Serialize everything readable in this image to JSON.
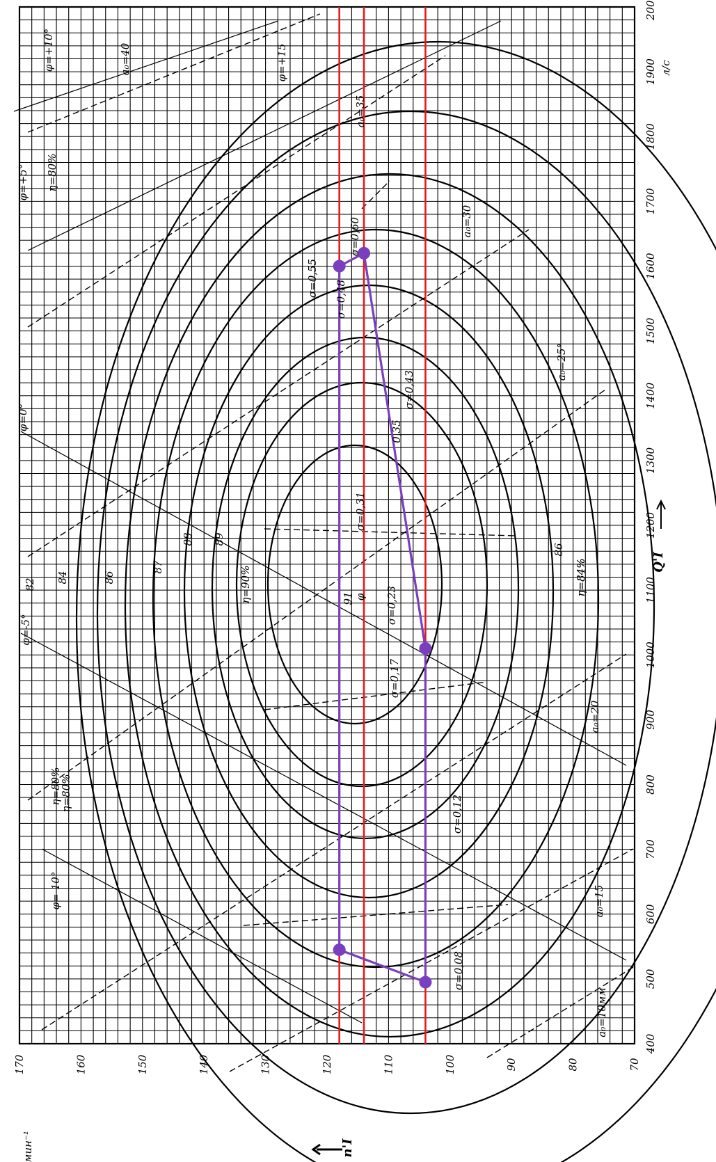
{
  "chart_data": {
    "type": "line",
    "title": "",
    "xlabel": "Q'I",
    "ylabel": "n'I",
    "x_unit": "л/с",
    "y_unit": "мин⁻¹",
    "xlim": [
      400,
      2000
    ],
    "ylim": [
      70,
      170
    ],
    "x_ticks": [
      "400",
      "500",
      "600",
      "700",
      "800",
      "900",
      "1000",
      "1100",
      "1200",
      "1300",
      "1400",
      "1500",
      "1600",
      "1700",
      "1800",
      "1900",
      "2000"
    ],
    "y_ticks": [
      "70",
      "80",
      "90",
      "100",
      "110",
      "120",
      "130",
      "140",
      "150",
      "160",
      "170"
    ],
    "grid": true,
    "orientation": "rotated 90° counter-clockwise (x axis vertical, right edge; y axis horizontal, bottom edge)",
    "reference_lines": [
      {
        "axis": "y",
        "value": 118,
        "color": "#e8191b"
      },
      {
        "axis": "y",
        "value": 114,
        "color": "#e8191b"
      },
      {
        "axis": "y",
        "value": 104,
        "color": "#e8191b"
      }
    ],
    "operating_zone": {
      "color": "#7a3fbf",
      "points": [
        {
          "x": 1600,
          "y": 118
        },
        {
          "x": 1620,
          "y": 114
        },
        {
          "x": 1010,
          "y": 104
        },
        {
          "x": 495,
          "y": 104
        },
        {
          "x": 545,
          "y": 118
        }
      ]
    },
    "efficiency_contours": [
      {
        "label": "η=90%",
        "value": 90
      },
      {
        "label": "89",
        "value": 89
      },
      {
        "label": "88",
        "value": 88
      },
      {
        "label": "87",
        "value": 87
      },
      {
        "label": "86",
        "value": 86
      },
      {
        "label": "84",
        "value": 84
      },
      {
        "label": "82",
        "value": 82
      },
      {
        "label": "η=80%",
        "value": 80
      },
      {
        "label": "η=84%",
        "value": 84
      },
      {
        "label": "91",
        "value": 91
      }
    ],
    "annotations": [
      {
        "text": "φ=+10°"
      },
      {
        "text": "a₀=40"
      },
      {
        "text": "φ=+15"
      },
      {
        "text": "a₀=35"
      },
      {
        "text": "η=80%"
      },
      {
        "text": "φ=+5°"
      },
      {
        "text": "a₀=30"
      },
      {
        "text": "σ=0,55"
      },
      {
        "text": "σ=0,60"
      },
      {
        "text": "σ=0,48"
      },
      {
        "text": "a₀=25°"
      },
      {
        "text": "σ=0,43"
      },
      {
        "text": "φ=0°"
      },
      {
        "text": "0,35"
      },
      {
        "text": "σ=0,31"
      },
      {
        "text": "η=84%"
      },
      {
        "text": "86"
      },
      {
        "text": "φ"
      },
      {
        "text": "σ=0,23"
      },
      {
        "text": "φ=-5°"
      },
      {
        "text": "σ=0,17"
      },
      {
        "text": "a₀=20"
      },
      {
        "text": "η=80%"
      },
      {
        "text": "σ=0,12"
      },
      {
        "text": "φ=-10°"
      },
      {
        "text": "a₀=15"
      },
      {
        "text": "σ=0,08"
      },
      {
        "text": "a₀=10мм"
      }
    ]
  }
}
